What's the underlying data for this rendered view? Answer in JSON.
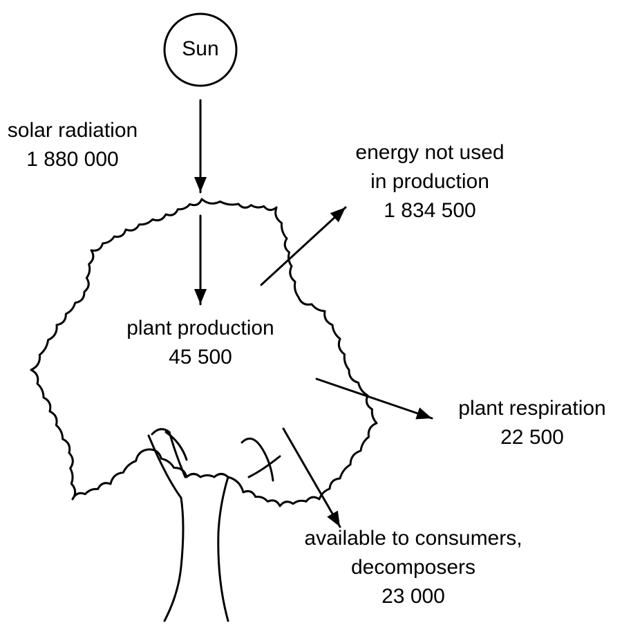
{
  "sun": {
    "label": "Sun"
  },
  "flows": [
    {
      "lines": [
        "solar radiation"
      ],
      "value": "1 880 000"
    },
    {
      "lines": [
        "energy not used",
        "in production"
      ],
      "value": "1 834 500"
    },
    {
      "lines": [
        "plant production"
      ],
      "value": "45 500"
    },
    {
      "lines": [
        "plant respiration"
      ],
      "value": "22 500"
    },
    {
      "lines": [
        "available to consumers,",
        "decomposers"
      ],
      "value": "23 000"
    }
  ]
}
